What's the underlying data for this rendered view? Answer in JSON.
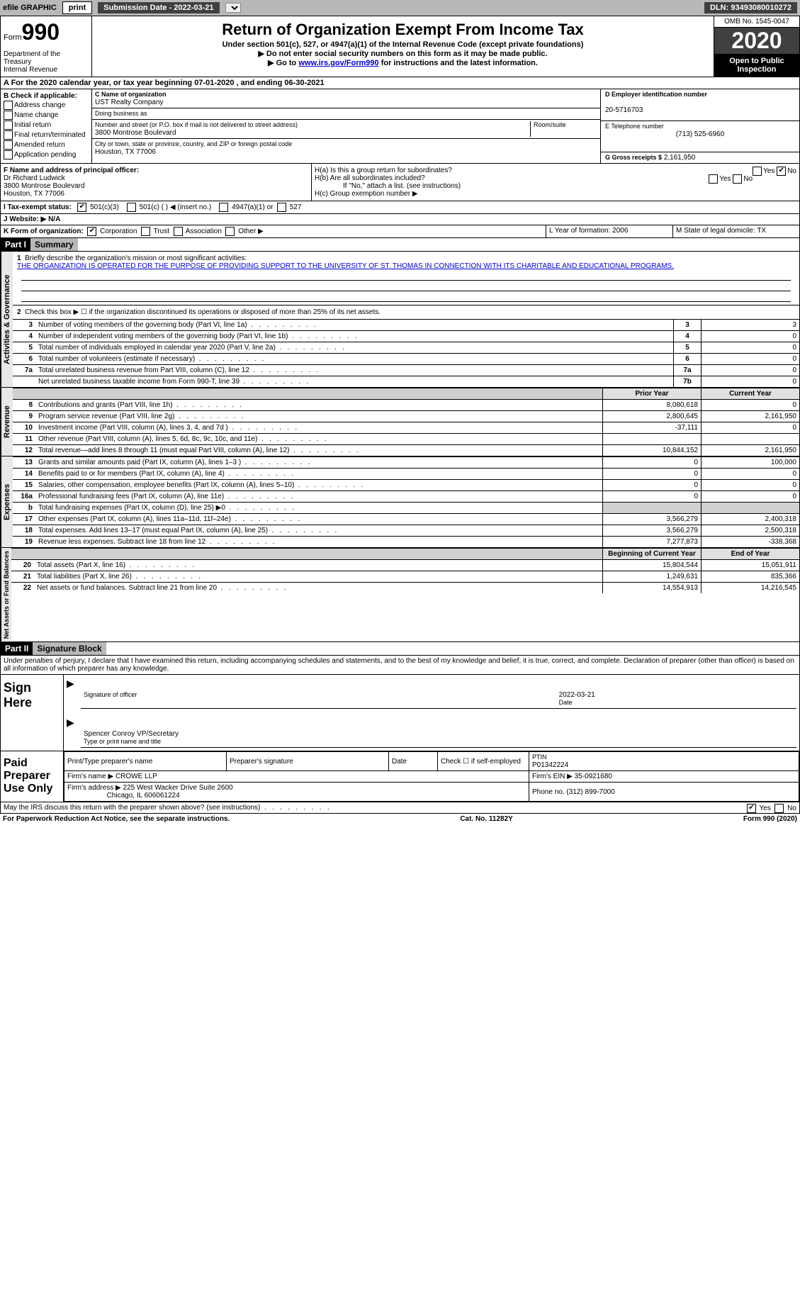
{
  "topbar": {
    "efile": "efile GRAPHIC",
    "print_btn": "print",
    "submission": "Submission Date - 2022-03-21",
    "dln": "DLN: 93493080010272"
  },
  "header": {
    "form_label": "Form",
    "form_number": "990",
    "dept": "Department of the Treasury",
    "irs": "Internal Revenue",
    "title": "Return of Organization Exempt From Income Tax",
    "sub1": "Under section 501(c), 527, or 4947(a)(1) of the Internal Revenue Code (except private foundations)",
    "sub2": "▶ Do not enter social security numbers on this form as it may be made public.",
    "sub3_pre": "▶ Go to ",
    "sub3_link": "www.irs.gov/Form990",
    "sub3_post": " for instructions and the latest information.",
    "omb": "OMB No. 1545-0047",
    "year": "2020",
    "open": "Open to Public Inspection"
  },
  "rowA": "A For the 2020 calendar year, or tax year beginning 07-01-2020    , and ending 06-30-2021",
  "colB": {
    "label": "B Check if applicable:",
    "items": [
      "Address change",
      "Name change",
      "Initial return",
      "Final return/terminated",
      "Amended return",
      "Application pending"
    ]
  },
  "colC": {
    "name_label": "C Name of organization",
    "name": "UST Realty Company",
    "dba_label": "Doing business as",
    "addr_label": "Number and street (or P.O. box if mail is not delivered to street address)",
    "room_label": "Room/suite",
    "addr": "3800 Montrose Boulevard",
    "city_label": "City or town, state or province, country, and ZIP or foreign postal code",
    "city": "Houston, TX  77006"
  },
  "colD": {
    "ein_label": "D Employer identification number",
    "ein": "20-5716703",
    "phone_label": "E Telephone number",
    "phone": "(713) 525-6960",
    "gross_label": "G Gross receipts $",
    "gross": "2,161,950"
  },
  "colF": {
    "label": "F  Name and address of principal officer:",
    "name": "Dr Richard Ludwick",
    "addr": "3800 Montrose Boulevard",
    "city": "Houston, TX  77006"
  },
  "colH": {
    "ha": "H(a)  Is this a group return for subordinates?",
    "hb": "H(b)  Are all subordinates included?",
    "hb_note": "If \"No,\" attach a list. (see instructions)",
    "hc": "H(c)  Group exemption number ▶",
    "yes": "Yes",
    "no": "No"
  },
  "lineI": {
    "label": "I    Tax-exempt status:",
    "opt1": "501(c)(3)",
    "opt2": "501(c) (  ) ◀ (insert no.)",
    "opt3": "4947(a)(1) or",
    "opt4": "527"
  },
  "lineJ": "J    Website: ▶  N/A",
  "lineK": {
    "label": "K Form of organization:",
    "corp": "Corporation",
    "trust": "Trust",
    "assoc": "Association",
    "other": "Other ▶",
    "l_year": "L Year of formation: 2006",
    "m_state": "M State of legal domicile: TX"
  },
  "part1": {
    "hdr": "Part I",
    "title": "Summary",
    "q1": "Briefly describe the organization's mission or most significant activities:",
    "mission": "THE ORGANIZATION IS OPERATED FOR THE PURPOSE OF PROVIDING SUPPORT TO THE UNIVERSITY OF ST. THOMAS IN CONNECTION WITH ITS CHARITABLE AND EDUCATIONAL PROGRAMS.",
    "q2": "Check this box ▶ ☐  if the organization discontinued its operations or disposed of more than 25% of its net assets.",
    "vlabel_gov": "Activities & Governance",
    "vlabel_rev": "Revenue",
    "vlabel_exp": "Expenses",
    "vlabel_net": "Net Assets or Fund Balances",
    "rows": [
      {
        "ln": "3",
        "txt": "Number of voting members of the governing body (Part VI, line 1a)",
        "box": "3",
        "val": "3"
      },
      {
        "ln": "4",
        "txt": "Number of independent voting members of the governing body (Part VI, line 1b)",
        "box": "4",
        "val": "0"
      },
      {
        "ln": "5",
        "txt": "Total number of individuals employed in calendar year 2020 (Part V, line 2a)",
        "box": "5",
        "val": "0"
      },
      {
        "ln": "6",
        "txt": "Total number of volunteers (estimate if necessary)",
        "box": "6",
        "val": "0"
      },
      {
        "ln": "7a",
        "txt": "Total unrelated business revenue from Part VIII, column (C), line 12",
        "box": "7a",
        "val": "0"
      },
      {
        "ln": "",
        "txt": "Net unrelated business taxable income from Form 990-T, line 39",
        "box": "7b",
        "val": "0"
      }
    ],
    "col_prior": "Prior Year",
    "col_current": "Current Year",
    "rev_rows": [
      {
        "ln": "8",
        "txt": "Contributions and grants (Part VIII, line 1h)",
        "p": "8,080,618",
        "c": "0"
      },
      {
        "ln": "9",
        "txt": "Program service revenue (Part VIII, line 2g)",
        "p": "2,800,645",
        "c": "2,161,950"
      },
      {
        "ln": "10",
        "txt": "Investment income (Part VIII, column (A), lines 3, 4, and 7d )",
        "p": "-37,111",
        "c": "0"
      },
      {
        "ln": "11",
        "txt": "Other revenue (Part VIII, column (A), lines 5, 6d, 8c, 9c, 10c, and 11e)",
        "p": "",
        "c": ""
      },
      {
        "ln": "12",
        "txt": "Total revenue—add lines 8 through 11 (must equal Part VIII, column (A), line 12)",
        "p": "10,844,152",
        "c": "2,161,950"
      }
    ],
    "exp_rows": [
      {
        "ln": "13",
        "txt": "Grants and similar amounts paid (Part IX, column (A), lines 1–3 )",
        "p": "0",
        "c": "100,000"
      },
      {
        "ln": "14",
        "txt": "Benefits paid to or for members (Part IX, column (A), line 4)",
        "p": "0",
        "c": "0"
      },
      {
        "ln": "15",
        "txt": "Salaries, other compensation, employee benefits (Part IX, column (A), lines 5–10)",
        "p": "0",
        "c": "0"
      },
      {
        "ln": "16a",
        "txt": "Professional fundraising fees (Part IX, column (A), line 11e)",
        "p": "0",
        "c": "0"
      },
      {
        "ln": "b",
        "txt": "Total fundraising expenses (Part IX, column (D), line 25) ▶0",
        "p": "sh",
        "c": "sh"
      },
      {
        "ln": "17",
        "txt": "Other expenses (Part IX, column (A), lines 11a–11d, 11f–24e)",
        "p": "3,566,279",
        "c": "2,400,318"
      },
      {
        "ln": "18",
        "txt": "Total expenses. Add lines 13–17 (must equal Part IX, column (A), line 25)",
        "p": "3,566,279",
        "c": "2,500,318"
      },
      {
        "ln": "19",
        "txt": "Revenue less expenses. Subtract line 18 from line 12",
        "p": "7,277,873",
        "c": "-338,368"
      }
    ],
    "col_beg": "Beginning of Current Year",
    "col_end": "End of Year",
    "net_rows": [
      {
        "ln": "20",
        "txt": "Total assets (Part X, line 16)",
        "p": "15,804,544",
        "c": "15,051,911"
      },
      {
        "ln": "21",
        "txt": "Total liabilities (Part X, line 26)",
        "p": "1,249,631",
        "c": "835,366"
      },
      {
        "ln": "22",
        "txt": "Net assets or fund balances. Subtract line 21 from line 20",
        "p": "14,554,913",
        "c": "14,216,545"
      }
    ]
  },
  "part2": {
    "hdr": "Part II",
    "title": "Signature Block",
    "declaration": "Under penalties of perjury, I declare that I have examined this return, including accompanying schedules and statements, and to the best of my knowledge and belief, it is true, correct, and complete. Declaration of preparer (other than officer) is based on all information of which preparer has any knowledge."
  },
  "sign": {
    "label": "Sign Here",
    "sig_of_officer": "Signature of officer",
    "date_label": "Date",
    "date": "2022-03-21",
    "name": "Spencer Conroy VP/Secretary",
    "type_label": "Type or print name and title"
  },
  "paid": {
    "label": "Paid Preparer Use Only",
    "col1": "Print/Type preparer's name",
    "col2": "Preparer's signature",
    "col3": "Date",
    "col4a": "Check ☐  if self-employed",
    "col5_label": "PTIN",
    "ptin": "P01342224",
    "firm_label": "Firm's name    ▶",
    "firm": "CROWE LLP",
    "ein_label": "Firm's EIN ▶",
    "ein": "35-0921680",
    "addr_label": "Firm's address ▶",
    "addr1": "225 West Wacker Drive Suite 2600",
    "addr2": "Chicago, IL  606061224",
    "phone_label": "Phone no.",
    "phone": "(312) 899-7000"
  },
  "discuss": {
    "txt": "May the IRS discuss this return with the preparer shown above? (see instructions)",
    "yes": "Yes",
    "no": "No"
  },
  "footer": {
    "left": "For Paperwork Reduction Act Notice, see the separate instructions.",
    "mid": "Cat. No. 11282Y",
    "right": "Form 990 (2020)"
  }
}
